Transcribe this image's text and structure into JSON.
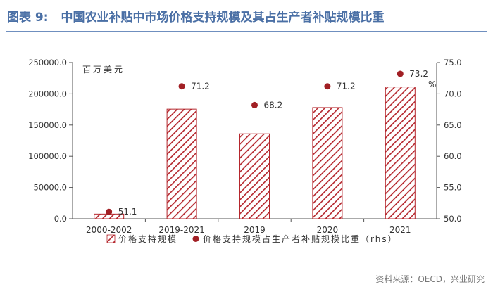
{
  "header": {
    "figure_no": "图表 9:",
    "title": "中国农业补贴中市场价格支持规模及其占生产者补贴规模比重"
  },
  "source": "资料来源：OECD，兴业研究",
  "chart_data": {
    "type": "bar",
    "categories": [
      "2000-2002",
      "2019-2021",
      "2019",
      "2020",
      "2021"
    ],
    "series": [
      {
        "name": "价格支持规模",
        "kind": "bar",
        "axis": "left",
        "color": "#b5272d",
        "values": [
          7500,
          175500,
          136000,
          178000,
          211000
        ]
      },
      {
        "name": "价格支持规模占生产者补贴规模比重（rhs）",
        "kind": "point",
        "axis": "right",
        "color": "#a11f24",
        "values": [
          51.1,
          71.2,
          68.2,
          71.2,
          73.2
        ],
        "labels": [
          "51.1",
          "71.2",
          "68.2",
          "71.2",
          "73.2"
        ]
      }
    ],
    "left_axis": {
      "unit": "百万美元",
      "ylim": [
        0,
        250000
      ],
      "ticks": [
        "0.0",
        "50000.0",
        "100000.0",
        "150000.0",
        "200000.0",
        "250000.0"
      ]
    },
    "right_axis": {
      "unit": "%",
      "ylim": [
        50,
        75
      ],
      "ticks": [
        "50.0",
        "55.0",
        "60.0",
        "65.0",
        "70.0",
        "75.0"
      ]
    },
    "legend": [
      "价格支持规模",
      "价格支持规模占生产者补贴规模比重（rhs）"
    ],
    "legend_position": "bottom",
    "grid": false
  }
}
